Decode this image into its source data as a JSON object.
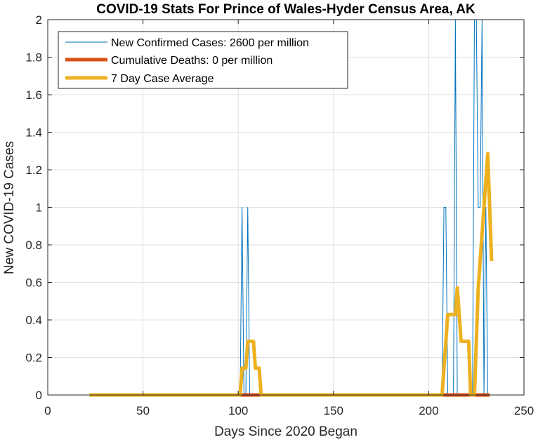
{
  "chart_data": {
    "type": "line",
    "title": "COVID-19 Stats For Prince of Wales-Hyder Census Area, AK",
    "xlabel": "Days Since 2020 Began",
    "ylabel": "New COVID-19 Cases",
    "xlim": [
      0,
      250
    ],
    "ylim": [
      0,
      2
    ],
    "xticks": [
      0,
      50,
      100,
      150,
      200,
      250
    ],
    "xtick_labels": [
      "0",
      "50",
      "100",
      "150",
      "200",
      "250"
    ],
    "yticks": [
      0,
      0.2,
      0.4,
      0.6,
      0.8,
      1,
      1.2,
      1.4,
      1.6,
      1.8,
      2
    ],
    "ytick_labels": [
      "0",
      "0.2",
      "0.4",
      "0.6",
      "0.8",
      "1",
      "1.2",
      "1.4",
      "1.6",
      "1.8",
      "2"
    ],
    "grid": true,
    "legend_position": "top-left",
    "series": [
      {
        "name": "New Confirmed Cases: 2600 per million",
        "color": "#0072BD",
        "x": [
          22,
          101,
          102,
          103,
          104,
          105,
          106,
          207,
          208,
          209,
          210,
          213,
          214,
          215,
          216,
          223,
          224,
          225,
          226,
          227,
          228,
          229,
          230,
          231,
          232
        ],
        "y": [
          0,
          0,
          1,
          0,
          0,
          1,
          0,
          0,
          1,
          1,
          0,
          0,
          2,
          0,
          0,
          0,
          2,
          2,
          1,
          1,
          2,
          0,
          1,
          0,
          0
        ]
      },
      {
        "name": "Cumulative Deaths: 0 per million",
        "color": "#D95319",
        "x": [
          22,
          232
        ],
        "y": [
          0,
          0
        ]
      },
      {
        "name": "7 Day Case Average",
        "color": "#EDB120",
        "x": [
          22,
          101,
          102,
          104,
          105,
          108,
          109,
          111,
          112,
          207,
          208,
          210,
          214,
          215,
          216,
          217,
          221,
          222,
          224,
          225,
          226,
          227,
          228,
          229,
          230,
          231,
          232,
          233
        ],
        "y": [
          0,
          0,
          0.143,
          0.143,
          0.286,
          0.286,
          0.143,
          0.143,
          0,
          0,
          0.143,
          0.429,
          0.429,
          0.571,
          0.429,
          0.286,
          0.286,
          0,
          0,
          0.286,
          0.571,
          0.714,
          0.857,
          1.0,
          1.143,
          1.286,
          1.0,
          0.714
        ]
      }
    ]
  }
}
